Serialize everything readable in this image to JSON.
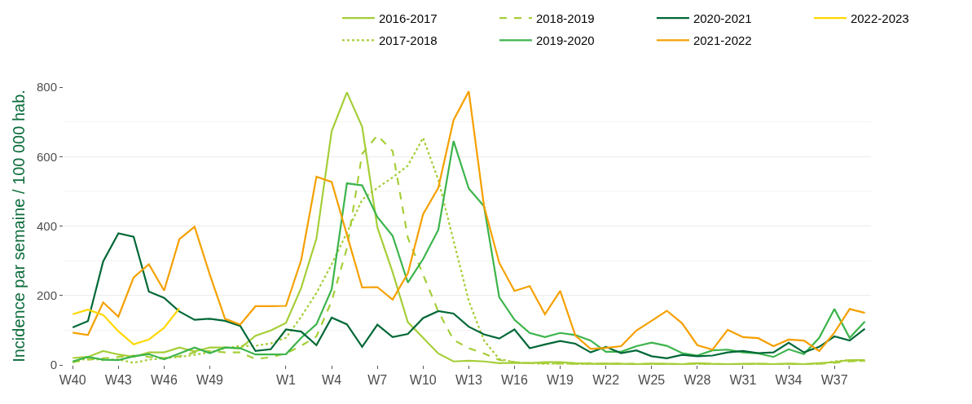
{
  "chart_data": {
    "type": "line",
    "ylabel": "Incidence par semaine / 100 000 hab.",
    "categories": [
      "W40",
      null,
      null,
      "W43",
      null,
      null,
      "W46",
      null,
      null,
      "W49",
      null,
      null,
      null,
      null,
      "W1",
      null,
      null,
      "W4",
      null,
      null,
      "W7",
      null,
      null,
      "W10",
      null,
      null,
      "W13",
      null,
      null,
      "W16",
      null,
      null,
      "W19",
      null,
      null,
      "W22",
      null,
      null,
      "W25",
      null,
      null,
      "W28",
      null,
      null,
      "W31",
      null,
      null,
      "W34",
      null,
      null,
      "W37",
      null,
      null
    ],
    "ylim": [
      0,
      800
    ],
    "yticks": [
      0,
      200,
      400,
      600,
      800
    ],
    "grid": "y",
    "legend": "top",
    "series": [
      {
        "name": "2016-2017",
        "color": "#a6ce39",
        "line_style": "solid",
        "values": [
          20,
          23,
          40,
          30,
          23,
          36,
          36,
          50,
          39,
          50,
          50,
          48,
          84,
          99,
          121,
          222,
          364,
          673,
          785,
          686,
          396,
          267,
          123,
          78,
          33,
          10,
          12,
          10,
          5,
          6,
          5,
          8,
          8,
          5,
          3,
          4,
          3,
          2,
          4,
          3,
          2,
          5,
          3,
          2,
          3,
          3,
          2,
          4,
          2,
          5,
          8,
          14,
          14
        ]
      },
      {
        "name": "2017-2018",
        "color": "#a6ce39",
        "line_style": "dotted",
        "values": [
          8,
          19,
          14,
          16,
          6,
          15,
          19,
          23,
          29,
          36,
          48,
          55,
          55,
          62,
          78,
          139,
          207,
          290,
          381,
          476,
          510,
          540,
          574,
          654,
          533,
          358,
          184,
          70,
          17,
          8,
          5,
          3,
          4,
          3,
          2,
          3,
          2,
          2,
          3,
          2,
          2,
          3,
          2,
          2,
          2,
          3,
          2,
          2,
          2,
          3,
          10,
          14,
          10
        ]
      },
      {
        "name": "2018-2019",
        "color": "#a6ce39",
        "line_style": "dashed",
        "values": [
          8,
          15,
          19,
          23,
          27,
          23,
          20,
          25,
          36,
          40,
          36,
          36,
          17,
          22,
          33,
          55,
          82,
          184,
          336,
          608,
          661,
          616,
          366,
          260,
          154,
          72,
          48,
          33,
          14,
          8,
          5,
          5,
          4,
          3,
          5,
          3,
          4,
          3,
          2,
          3,
          2,
          4,
          3,
          2,
          2,
          3,
          2,
          3,
          2,
          3,
          6,
          10,
          12
        ]
      },
      {
        "name": "2019-2020",
        "color": "#3cb44b",
        "line_style": "solid",
        "values": [
          10,
          23,
          15,
          14,
          25,
          31,
          16,
          33,
          50,
          34,
          50,
          48,
          30,
          30,
          31,
          78,
          117,
          218,
          523,
          517,
          426,
          372,
          237,
          305,
          389,
          645,
          508,
          457,
          195,
          130,
          92,
          80,
          92,
          86,
          70,
          38,
          38,
          54,
          64,
          55,
          34,
          27,
          42,
          44,
          36,
          33,
          23,
          45,
          31,
          78,
          161,
          78,
          125
        ]
      },
      {
        "name": "2020-2021",
        "color": "#006837",
        "line_style": "solid",
        "values": [
          108,
          126,
          298,
          379,
          369,
          211,
          193,
          154,
          130,
          133,
          127,
          112,
          40,
          45,
          102,
          96,
          57,
          136,
          117,
          52,
          116,
          80,
          89,
          135,
          155,
          148,
          110,
          88,
          76,
          102,
          48,
          59,
          69,
          61,
          36,
          52,
          34,
          42,
          25,
          19,
          29,
          25,
          27,
          36,
          40,
          34,
          36,
          64,
          36,
          52,
          82,
          70,
          104
        ]
      },
      {
        "name": "2021-2022",
        "color": "#f5a000",
        "line_style": "solid",
        "values": [
          93,
          86,
          180,
          139,
          252,
          290,
          214,
          362,
          398,
          260,
          133,
          116,
          169,
          169,
          170,
          302,
          542,
          527,
          375,
          223,
          224,
          188,
          264,
          434,
          510,
          705,
          788,
          457,
          294,
          213,
          227,
          146,
          213,
          84,
          46,
          49,
          54,
          99,
          127,
          156,
          120,
          57,
          44,
          101,
          80,
          77,
          54,
          73,
          70,
          40,
          93,
          161,
          150
        ]
      },
      {
        "name": "2022-2023",
        "color": "#ffd700",
        "line_style": "solid",
        "values": [
          146,
          159,
          144,
          97,
          59,
          73,
          107,
          163,
          null,
          null,
          null,
          null,
          null,
          null,
          null,
          null,
          null,
          null,
          null,
          null,
          null,
          null,
          null,
          null,
          null,
          null,
          null,
          null,
          null,
          null,
          null,
          null,
          null,
          null,
          null,
          null,
          null,
          null,
          null,
          null,
          null,
          null,
          null,
          null,
          null,
          null,
          null,
          null,
          null,
          null,
          null,
          null,
          null
        ]
      }
    ]
  }
}
